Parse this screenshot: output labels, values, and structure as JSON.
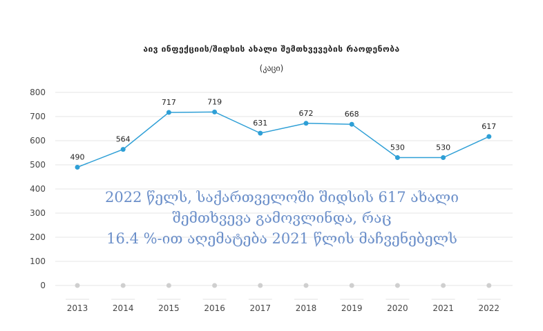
{
  "chart_data": {
    "type": "line",
    "title": "აივ ინფექციის/შიდსის ახალი შემთხვევების რაოდენობა",
    "subtitle": "(კაცი)",
    "categories": [
      "2013",
      "2014",
      "2015",
      "2016",
      "2017",
      "2018",
      "2019",
      "2020",
      "2021",
      "2022"
    ],
    "series": [
      {
        "values": [
          490,
          564,
          717,
          719,
          631,
          672,
          668,
          530,
          530,
          617
        ]
      }
    ],
    "data_labels": [
      "490",
      "564",
      "717",
      "719",
      "631",
      "672",
      "668",
      "530",
      "530",
      "617"
    ],
    "ylim": [
      0,
      800
    ],
    "yticks": [
      0,
      100,
      200,
      300,
      400,
      500,
      600,
      700,
      800
    ],
    "grid": true,
    "colors": {
      "line": "#2e9fd6",
      "grid": "#e6e6e6",
      "axis_dot": "#cfcfcf"
    }
  },
  "overlay_text": {
    "line1": "2022 წელს, საქართველოში შიდსის 617 ახალი",
    "line2": "შემთხვევა გამოვლინდა, რაც",
    "line3": "16.4 %-ით აღემატება 2021 წლის მაჩვენებელს"
  }
}
